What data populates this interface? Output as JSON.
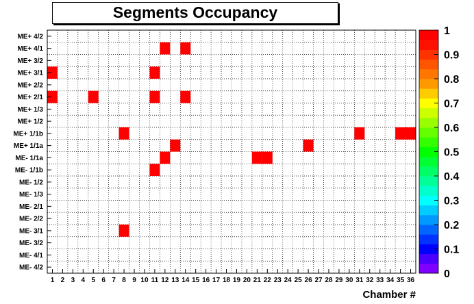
{
  "chart_data": {
    "type": "heatmap",
    "title": "Segments Occupancy",
    "xlabel": "Chamber #",
    "ylabel": "",
    "x_categories": [
      "1",
      "2",
      "3",
      "4",
      "5",
      "6",
      "7",
      "8",
      "9",
      "10",
      "11",
      "12",
      "13",
      "14",
      "15",
      "16",
      "17",
      "18",
      "19",
      "20",
      "21",
      "22",
      "23",
      "24",
      "25",
      "26",
      "27",
      "28",
      "29",
      "30",
      "31",
      "32",
      "33",
      "34",
      "35",
      "36"
    ],
    "y_categories": [
      "ME+ 4/2",
      "ME+ 4/1",
      "ME+ 3/2",
      "ME+ 3/1",
      "ME+ 2/2",
      "ME+ 2/1",
      "ME+ 1/3",
      "ME+ 1/2",
      "ME+ 1/1b",
      "ME+ 1/1a",
      "ME- 1/1a",
      "ME- 1/1b",
      "ME- 1/2",
      "ME- 1/3",
      "ME- 2/1",
      "ME- 2/2",
      "ME- 3/1",
      "ME- 3/2",
      "ME- 4/1",
      "ME- 4/2"
    ],
    "zlim": [
      0,
      1
    ],
    "z_ticks": [
      "0",
      "0.1",
      "0.2",
      "0.3",
      "0.4",
      "0.5",
      "0.6",
      "0.7",
      "0.8",
      "0.9",
      "1"
    ],
    "grid": true,
    "filled_cells": [
      {
        "row": "ME+ 4/1",
        "chamber": 12,
        "value": 1
      },
      {
        "row": "ME+ 4/1",
        "chamber": 14,
        "value": 1
      },
      {
        "row": "ME+ 3/1",
        "chamber": 1,
        "value": 1
      },
      {
        "row": "ME+ 3/1",
        "chamber": 11,
        "value": 1
      },
      {
        "row": "ME+ 2/1",
        "chamber": 1,
        "value": 1
      },
      {
        "row": "ME+ 2/1",
        "chamber": 5,
        "value": 1
      },
      {
        "row": "ME+ 2/1",
        "chamber": 11,
        "value": 1
      },
      {
        "row": "ME+ 2/1",
        "chamber": 14,
        "value": 1
      },
      {
        "row": "ME+ 1/1b",
        "chamber": 8,
        "value": 1
      },
      {
        "row": "ME+ 1/1b",
        "chamber": 31,
        "value": 1
      },
      {
        "row": "ME+ 1/1b",
        "chamber": 35,
        "value": 1
      },
      {
        "row": "ME+ 1/1b",
        "chamber": 36,
        "value": 1
      },
      {
        "row": "ME+ 1/1a",
        "chamber": 13,
        "value": 1
      },
      {
        "row": "ME+ 1/1a",
        "chamber": 26,
        "value": 1
      },
      {
        "row": "ME- 1/1a",
        "chamber": 12,
        "value": 1
      },
      {
        "row": "ME- 1/1a",
        "chamber": 21,
        "value": 1
      },
      {
        "row": "ME- 1/1a",
        "chamber": 22,
        "value": 1
      },
      {
        "row": "ME- 1/1b",
        "chamber": 11,
        "value": 1
      },
      {
        "row": "ME- 3/1",
        "chamber": 8,
        "value": 1
      }
    ],
    "palette": [
      "#7f00ff",
      "#4b00ff",
      "#0000ff",
      "#0033ff",
      "#0066ff",
      "#0099ff",
      "#00ccff",
      "#00ffff",
      "#00ffcc",
      "#00ff99",
      "#00ff66",
      "#00ff33",
      "#00ff00",
      "#33ff00",
      "#66ff00",
      "#99ff00",
      "#ccff00",
      "#ffff00",
      "#ffcc00",
      "#ff9900",
      "#ff7700",
      "#ff5500",
      "#ff3300",
      "#ff1100",
      "#ff0000"
    ],
    "cell_color": "#ff0000"
  }
}
